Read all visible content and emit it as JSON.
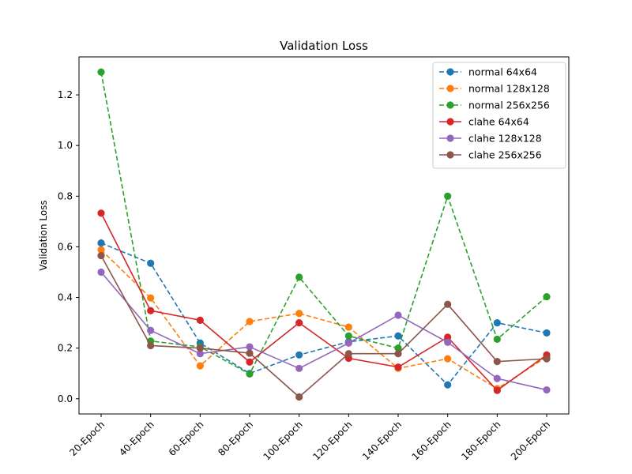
{
  "chart_data": {
    "type": "line",
    "title": "Validation Loss",
    "xlabel": "",
    "ylabel": "Validation Loss",
    "categories": [
      "20-Epoch",
      "40-Epoch",
      "60-Epoch",
      "80-Epoch",
      "100-Epoch",
      "120-Epoch",
      "140-Epoch",
      "160-Epoch",
      "180-Epoch",
      "200-Epoch"
    ],
    "yticks": [
      "0.0",
      "0.2",
      "0.4",
      "0.6",
      "0.8",
      "1.0",
      "1.2"
    ],
    "ylim": [
      -0.06,
      1.35
    ],
    "grid": false,
    "legend_position": "top-right",
    "series": [
      {
        "name": "normal 64x64",
        "color": "#1f77b4",
        "dashed": true,
        "values": [
          0.615,
          0.535,
          0.22,
          0.1,
          0.173,
          0.225,
          0.248,
          0.055,
          0.3,
          0.26
        ]
      },
      {
        "name": "normal 128x128",
        "color": "#ff7f0e",
        "dashed": true,
        "values": [
          0.588,
          0.398,
          0.13,
          0.305,
          0.337,
          0.283,
          0.12,
          0.158,
          0.04,
          0.165
        ]
      },
      {
        "name": "normal 256x256",
        "color": "#2ca02c",
        "dashed": true,
        "values": [
          1.29,
          0.228,
          0.205,
          0.098,
          0.48,
          0.248,
          0.2,
          0.8,
          0.235,
          0.403
        ]
      },
      {
        "name": "clahe 64x64",
        "color": "#d62728",
        "dashed": false,
        "values": [
          0.733,
          0.348,
          0.31,
          0.145,
          0.3,
          0.16,
          0.125,
          0.243,
          0.033,
          0.173
        ]
      },
      {
        "name": "clahe 128x128",
        "color": "#9467bd",
        "dashed": false,
        "values": [
          0.5,
          0.27,
          0.178,
          0.205,
          0.12,
          0.22,
          0.33,
          0.223,
          0.08,
          0.035
        ]
      },
      {
        "name": "clahe 256x256",
        "color": "#8c564b",
        "dashed": false,
        "values": [
          0.565,
          0.21,
          0.2,
          0.18,
          0.007,
          0.178,
          0.178,
          0.373,
          0.147,
          0.158
        ]
      }
    ]
  }
}
